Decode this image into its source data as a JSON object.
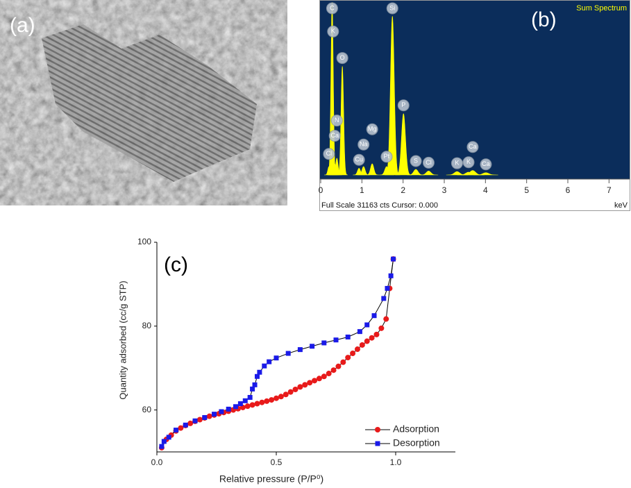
{
  "image_panel": {
    "label": "(a)"
  },
  "chart_data": [
    {
      "type": "spectrum",
      "label": "(b)",
      "title": "Sum Spectrum",
      "footer": "Full Scale 31163 cts Cursor: 0.000",
      "xlabel": "keV",
      "xlim": [
        0,
        7.5
      ],
      "xticks": [
        0,
        1,
        2,
        3,
        4,
        5,
        6,
        7
      ],
      "ylim": [
        0,
        31163
      ],
      "color": "#ffff00",
      "background": "#0b2d5b",
      "peaks": [
        {
          "element": "Cl",
          "energy": 0.2,
          "counts": 1500
        },
        {
          "element": "C",
          "energy": 0.277,
          "counts": 31000
        },
        {
          "element": "K",
          "energy": 0.3,
          "counts": 1200
        },
        {
          "element": "Ca",
          "energy": 0.341,
          "counts": 2000
        },
        {
          "element": "N",
          "energy": 0.392,
          "counts": 3000
        },
        {
          "element": "O",
          "energy": 0.525,
          "counts": 19500
        },
        {
          "element": "Cu",
          "energy": 0.93,
          "counts": 1200
        },
        {
          "element": "Na",
          "energy": 1.04,
          "counts": 1500
        },
        {
          "element": "Mg",
          "energy": 1.25,
          "counts": 2000
        },
        {
          "element": "Pt",
          "energy": 1.6,
          "counts": 1500
        },
        {
          "element": "Si",
          "energy": 1.74,
          "counts": 28500
        },
        {
          "element": "P",
          "energy": 2.01,
          "counts": 11000
        },
        {
          "element": "S",
          "energy": 2.31,
          "counts": 1000
        },
        {
          "element": "Cl",
          "energy": 2.62,
          "counts": 700
        },
        {
          "element": "K",
          "energy": 3.31,
          "counts": 600
        },
        {
          "element": "K",
          "energy": 3.59,
          "counts": 500
        },
        {
          "element": "Ca",
          "energy": 3.69,
          "counts": 800
        },
        {
          "element": "Ca",
          "energy": 4.01,
          "counts": 400
        }
      ]
    },
    {
      "type": "line",
      "label": "(c)",
      "xlabel": "Relative pressure (P/P⁰)",
      "ylabel": "Quantity adsorbed (cc/g STP)",
      "xlim": [
        0,
        1.25
      ],
      "xticks": [
        {
          "value": 0,
          "label": "0.0"
        },
        0.5,
        {
          "value": 1,
          "label": "1.0"
        }
      ],
      "ylim": [
        50,
        100
      ],
      "yticks": [
        60,
        80,
        100
      ],
      "legend": "lower right",
      "line_color": "#000000",
      "series": [
        {
          "name": "Adsorption",
          "color": "#e81a1a",
          "marker": "circle",
          "x": [
            0.02,
            0.04,
            0.06,
            0.08,
            0.1,
            0.12,
            0.14,
            0.16,
            0.18,
            0.2,
            0.22,
            0.24,
            0.26,
            0.28,
            0.3,
            0.32,
            0.34,
            0.36,
            0.38,
            0.4,
            0.42,
            0.44,
            0.46,
            0.48,
            0.5,
            0.52,
            0.54,
            0.56,
            0.58,
            0.6,
            0.62,
            0.64,
            0.66,
            0.68,
            0.7,
            0.72,
            0.74,
            0.76,
            0.78,
            0.8,
            0.82,
            0.84,
            0.86,
            0.88,
            0.9,
            0.92,
            0.94,
            0.96,
            0.975,
            0.99
          ],
          "values": [
            51,
            53,
            54,
            55,
            55.7,
            56.3,
            56.8,
            57.3,
            57.7,
            58.1,
            58.5,
            58.8,
            59.1,
            59.4,
            59.7,
            60,
            60.3,
            60.6,
            60.9,
            61.2,
            61.5,
            61.8,
            62.1,
            62.4,
            62.8,
            63.2,
            63.7,
            64.3,
            64.9,
            65.5,
            66,
            66.5,
            67,
            67.5,
            68,
            68.7,
            69.5,
            70.4,
            71.4,
            72.5,
            73.5,
            74.5,
            75.5,
            76.4,
            77.2,
            78,
            79.5,
            81.7,
            89,
            96
          ]
        },
        {
          "name": "Desorption",
          "color": "#1a1ae8",
          "marker": "square",
          "x": [
            0.99,
            0.98,
            0.965,
            0.95,
            0.91,
            0.88,
            0.85,
            0.8,
            0.75,
            0.7,
            0.65,
            0.6,
            0.55,
            0.5,
            0.47,
            0.45,
            0.43,
            0.42,
            0.41,
            0.4,
            0.39,
            0.37,
            0.35,
            0.33,
            0.3,
            0.27,
            0.24,
            0.2,
            0.16,
            0.12,
            0.08,
            0.05,
            0.03,
            0.02
          ],
          "values": [
            96,
            92,
            89,
            86.6,
            82.5,
            80.3,
            78.7,
            77.4,
            76.7,
            76,
            75.2,
            74.4,
            73.5,
            72.4,
            71.5,
            70.5,
            69,
            68,
            66,
            65,
            63,
            62.2,
            61.5,
            60.8,
            60.2,
            59.6,
            59,
            58.2,
            57.4,
            56.4,
            55.2,
            53.5,
            52.5,
            51.3
          ]
        }
      ]
    }
  ]
}
